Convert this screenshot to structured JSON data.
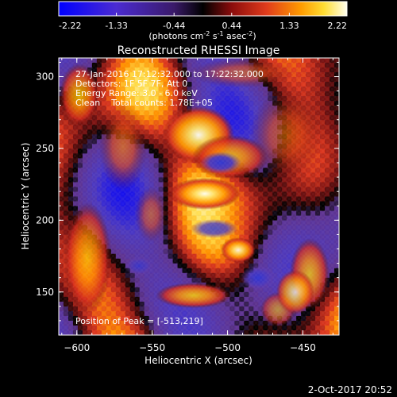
{
  "colorbar": {
    "ticks": [
      "-2.22",
      "-1.33",
      "-0.44",
      "0.44",
      "1.33",
      "2.22"
    ],
    "units": "(photons cm^-2 s^-1 asec^-2)"
  },
  "title": "Reconstructed RHESSI Image",
  "annotations": {
    "time_range": "27-Jan-2016 17:12:32.000 to 17:22:32.000",
    "detectors": "Detectors: 1F 5F 7F, Att 0",
    "energy_range": "Energy Range: 3.0 - 6.0 keV",
    "clean_counts": "Clean    Total counts: 1.78E+05",
    "peak_position": "Position of Peak = [-513,219]"
  },
  "axes": {
    "xlabel": "Heliocentric X (arcsec)",
    "ylabel": "Heliocentric Y (arcsec)",
    "xticks": [
      "-600",
      "-550",
      "-500",
      "-450"
    ],
    "yticks": [
      "150",
      "200",
      "250",
      "300"
    ]
  },
  "timestamp": "2-Oct-2017 20:52",
  "chart_data": {
    "type": "heatmap",
    "title": "Reconstructed RHESSI Image",
    "xlabel": "Heliocentric X (arcsec)",
    "ylabel": "Heliocentric Y (arcsec)",
    "xlim": [
      -612,
      -426
    ],
    "ylim": [
      120,
      313
    ],
    "colorbar_range": [
      -2.22,
      2.22
    ],
    "peak_position": [
      -513,
      219
    ],
    "colormap_stops": [
      "#0000ff",
      "#6f2bb3",
      "#000000",
      "#dc143c",
      "#ffd700",
      "#ffffff"
    ]
  }
}
